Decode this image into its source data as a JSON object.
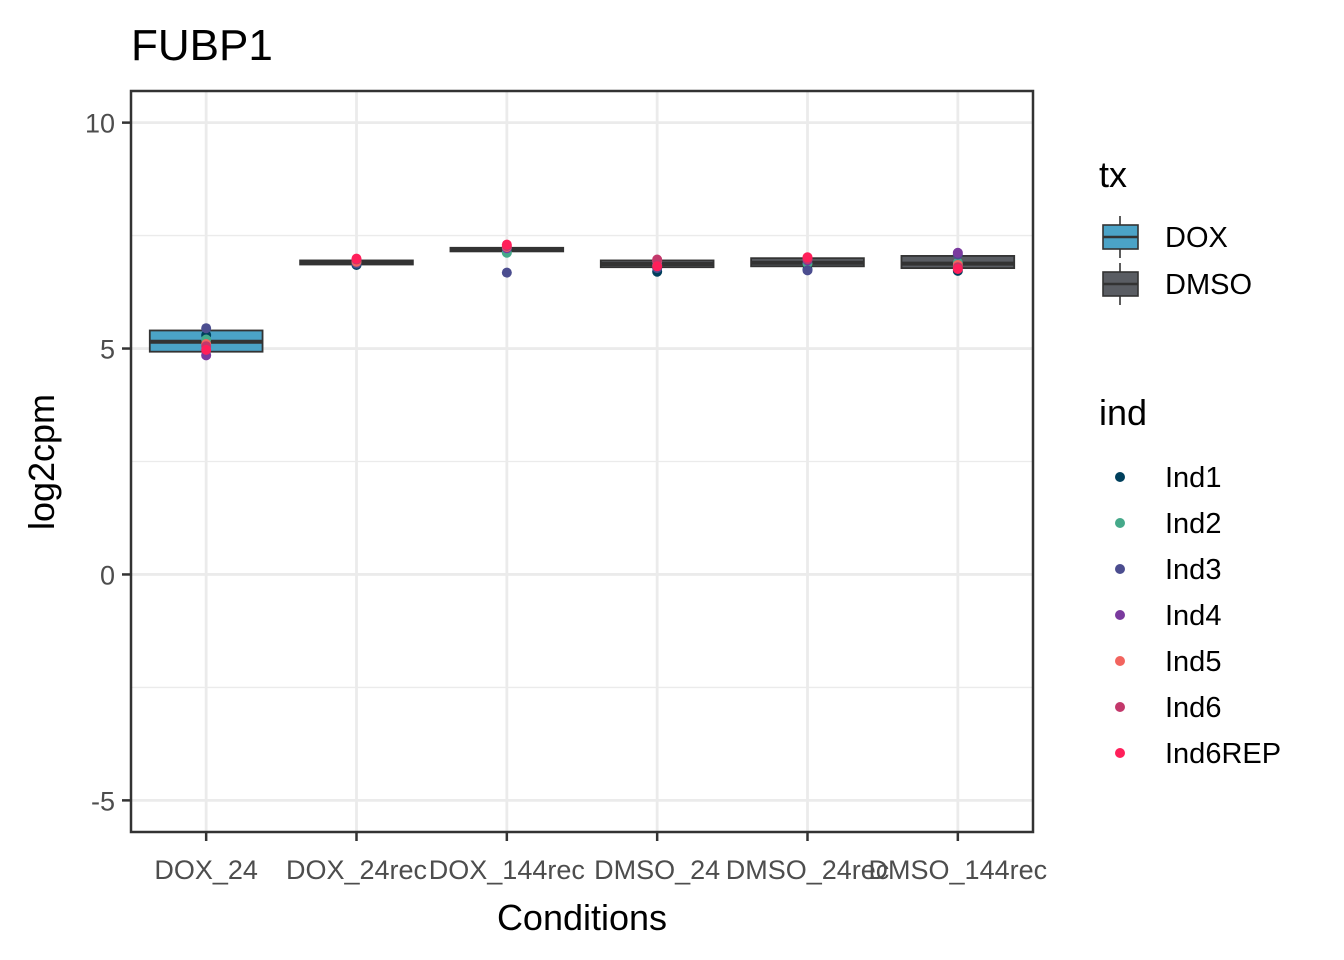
{
  "chart_data": {
    "type": "box",
    "title": "FUBP1",
    "xlabel": "Conditions",
    "ylabel": "log2cpm",
    "ylim": [
      -5.7,
      10.7
    ],
    "yticks": [
      -5,
      0,
      5,
      10
    ],
    "ytick_labels": [
      "-5",
      "0",
      "5",
      "10"
    ],
    "categories": [
      "DOX_24",
      "DOX_24rec",
      "DOX_144rec",
      "DMSO_24",
      "DMSO_24rec",
      "DMSO_144rec"
    ],
    "grid": true,
    "legend_position": "right",
    "boxes": [
      {
        "category": "DOX_24",
        "tx": "DOX",
        "q1": 4.93,
        "median": 5.15,
        "q3": 5.4
      },
      {
        "category": "DOX_24rec",
        "tx": "DOX",
        "q1": 6.86,
        "median": 6.9,
        "q3": 6.95
      },
      {
        "category": "DOX_144rec",
        "tx": "DOX",
        "q1": 7.15,
        "median": 7.19,
        "q3": 7.23
      },
      {
        "category": "DMSO_24",
        "tx": "DMSO",
        "q1": 6.8,
        "median": 6.87,
        "q3": 6.95
      },
      {
        "category": "DMSO_24rec",
        "tx": "DMSO",
        "q1": 6.82,
        "median": 6.9,
        "q3": 7.0
      },
      {
        "category": "DMSO_144rec",
        "tx": "DMSO",
        "q1": 6.78,
        "median": 6.88,
        "q3": 7.05
      }
    ],
    "points": [
      {
        "category": "DOX_24",
        "ind": "Ind1",
        "value": 5.3
      },
      {
        "category": "DOX_24",
        "ind": "Ind2",
        "value": 5.2
      },
      {
        "category": "DOX_24",
        "ind": "Ind3",
        "value": 5.45
      },
      {
        "category": "DOX_24",
        "ind": "Ind4",
        "value": 4.85
      },
      {
        "category": "DOX_24",
        "ind": "Ind5",
        "value": 5.1
      },
      {
        "category": "DOX_24",
        "ind": "Ind6",
        "value": 5.05
      },
      {
        "category": "DOX_24",
        "ind": "Ind6REP",
        "value": 4.97
      },
      {
        "category": "DOX_24rec",
        "ind": "Ind1",
        "value": 6.85
      },
      {
        "category": "DOX_24rec",
        "ind": "Ind2",
        "value": 6.9
      },
      {
        "category": "DOX_24rec",
        "ind": "Ind3",
        "value": 6.88
      },
      {
        "category": "DOX_24rec",
        "ind": "Ind4",
        "value": 6.95
      },
      {
        "category": "DOX_24rec",
        "ind": "Ind5",
        "value": 6.92
      },
      {
        "category": "DOX_24rec",
        "ind": "Ind6",
        "value": 6.97
      },
      {
        "category": "DOX_24rec",
        "ind": "Ind6REP",
        "value": 6.99
      },
      {
        "category": "DOX_144rec",
        "ind": "Ind1",
        "value": 7.2
      },
      {
        "category": "DOX_144rec",
        "ind": "Ind2",
        "value": 7.12
      },
      {
        "category": "DOX_144rec",
        "ind": "Ind3",
        "value": 6.68
      },
      {
        "category": "DOX_144rec",
        "ind": "Ind4",
        "value": 7.22
      },
      {
        "category": "DOX_144rec",
        "ind": "Ind5",
        "value": 7.25
      },
      {
        "category": "DOX_144rec",
        "ind": "Ind6",
        "value": 7.27
      },
      {
        "category": "DOX_144rec",
        "ind": "Ind6REP",
        "value": 7.3
      },
      {
        "category": "DMSO_24",
        "ind": "Ind1",
        "value": 6.7
      },
      {
        "category": "DMSO_24",
        "ind": "Ind2",
        "value": 6.85
      },
      {
        "category": "DMSO_24",
        "ind": "Ind3",
        "value": 6.78
      },
      {
        "category": "DMSO_24",
        "ind": "Ind4",
        "value": 6.92
      },
      {
        "category": "DMSO_24",
        "ind": "Ind5",
        "value": 6.95
      },
      {
        "category": "DMSO_24",
        "ind": "Ind6",
        "value": 6.97
      },
      {
        "category": "DMSO_24",
        "ind": "Ind6REP",
        "value": 6.82
      },
      {
        "category": "DMSO_24rec",
        "ind": "Ind1",
        "value": 6.75
      },
      {
        "category": "DMSO_24rec",
        "ind": "Ind2",
        "value": 6.88
      },
      {
        "category": "DMSO_24rec",
        "ind": "Ind3",
        "value": 6.73
      },
      {
        "category": "DMSO_24rec",
        "ind": "Ind4",
        "value": 6.95
      },
      {
        "category": "DMSO_24rec",
        "ind": "Ind5",
        "value": 7.0
      },
      {
        "category": "DMSO_24rec",
        "ind": "Ind6",
        "value": 6.98
      },
      {
        "category": "DMSO_24rec",
        "ind": "Ind6REP",
        "value": 7.02
      },
      {
        "category": "DMSO_144rec",
        "ind": "Ind1",
        "value": 6.72
      },
      {
        "category": "DMSO_144rec",
        "ind": "Ind2",
        "value": 6.9
      },
      {
        "category": "DMSO_144rec",
        "ind": "Ind3",
        "value": 7.08
      },
      {
        "category": "DMSO_144rec",
        "ind": "Ind4",
        "value": 7.12
      },
      {
        "category": "DMSO_144rec",
        "ind": "Ind5",
        "value": 6.85
      },
      {
        "category": "DMSO_144rec",
        "ind": "Ind6",
        "value": 6.8
      },
      {
        "category": "DMSO_144rec",
        "ind": "Ind6REP",
        "value": 6.76
      }
    ],
    "legends": [
      {
        "title": "tx",
        "kind": "box",
        "entries": [
          {
            "label": "DOX",
            "color": "#4ba3c7"
          },
          {
            "label": "DMSO",
            "color": "#5a5d63"
          }
        ]
      },
      {
        "title": "ind",
        "kind": "point",
        "entries": [
          {
            "label": "Ind1",
            "color": "#003f5c"
          },
          {
            "label": "Ind2",
            "color": "#45a98a"
          },
          {
            "label": "Ind3",
            "color": "#4b4d8f"
          },
          {
            "label": "Ind4",
            "color": "#7a3a9e"
          },
          {
            "label": "Ind5",
            "color": "#f2645e"
          },
          {
            "label": "Ind6",
            "color": "#c3386b"
          },
          {
            "label": "Ind6REP",
            "color": "#ff1f5a"
          }
        ]
      }
    ]
  }
}
